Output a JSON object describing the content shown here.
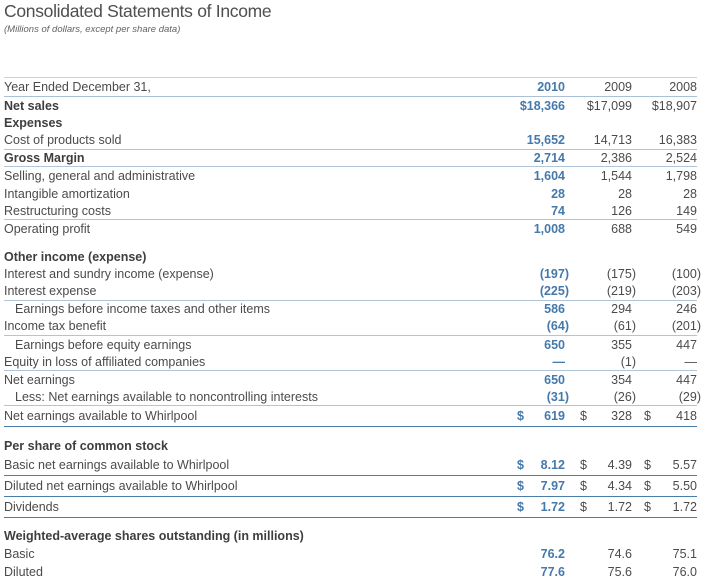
{
  "title": "Consolidated Statements of Income",
  "subtitle": "(Millions of dollars, except per share data)",
  "colors": {
    "accent_blue": "#4579ab",
    "rule_light": "#b0c5d8",
    "rule_dark": "#4b7dab",
    "text": "#4b4b4b"
  },
  "table": {
    "header": {
      "label": "Year Ended December 31,",
      "columns": [
        "2010",
        "2009",
        "2008"
      ]
    },
    "rows": [
      {
        "label": "Net sales",
        "bold": true,
        "values": [
          "$18,366",
          "$17,099",
          "$18,907"
        ]
      },
      {
        "label": "Expenses",
        "bold": true
      },
      {
        "label": "Cost of products sold",
        "values": [
          "15,652",
          "14,713",
          "16,383"
        ],
        "rule": "light"
      },
      {
        "label": "Gross Margin",
        "bold": true,
        "values": [
          "2,714",
          "2,386",
          "2,524"
        ],
        "rule": "light"
      },
      {
        "label": "Selling, general and administrative",
        "values": [
          "1,604",
          "1,544",
          "1,798"
        ]
      },
      {
        "label": "Intangible amortization",
        "values": [
          "28",
          "28",
          "28"
        ]
      },
      {
        "label": "Restructuring costs",
        "values": [
          "74",
          "126",
          "149"
        ],
        "rule": "light"
      },
      {
        "label": "Operating profit",
        "values": [
          "1,008",
          "688",
          "549"
        ]
      },
      {
        "label": "Other income (expense)",
        "bold": true,
        "gap": true
      },
      {
        "label": "Interest and sundry income (expense)",
        "values": [
          "(197)",
          "(175)",
          "(100)"
        ]
      },
      {
        "label": "Interest expense",
        "values": [
          "(225)",
          "(219)",
          "(203)"
        ],
        "rule": "light"
      },
      {
        "label": "Earnings before income taxes and other items",
        "indent": true,
        "values": [
          "586",
          "294",
          "246"
        ]
      },
      {
        "label": "Income tax benefit",
        "values": [
          "(64)",
          "(61)",
          "(201)"
        ],
        "rule": "light"
      },
      {
        "label": "Earnings before equity earnings",
        "indent": true,
        "values": [
          "650",
          "355",
          "447"
        ]
      },
      {
        "label": "Equity in loss of affiliated companies",
        "values": [
          "—",
          "(1)",
          "—"
        ],
        "rule": "light"
      },
      {
        "label": "Net earnings",
        "values": [
          "650",
          "354",
          "447"
        ]
      },
      {
        "label": "Less: Net earnings available to noncontrolling interests",
        "indent": true,
        "values": [
          "(31)",
          "(26)",
          "(29)"
        ],
        "rule": "light"
      },
      {
        "label": "Net earnings available to Whirlpool",
        "dollar": true,
        "values": [
          "619",
          "328",
          "418"
        ],
        "rule": "dark"
      },
      {
        "label": "Per share of common stock",
        "bold": true,
        "gap": true
      },
      {
        "label": "Basic net earnings available to Whirlpool",
        "dollar": true,
        "values": [
          "8.12",
          "4.39",
          "5.57"
        ],
        "rule": "dark"
      },
      {
        "label": "Diluted net earnings available to Whirlpool",
        "dollar": true,
        "values": [
          "7.97",
          "4.34",
          "5.50"
        ],
        "rule": "dark"
      },
      {
        "label": "Dividends",
        "dollar": true,
        "values": [
          "1.72",
          "1.72",
          "1.72"
        ],
        "rule": "dark"
      },
      {
        "label": "Weighted-average shares outstanding (in millions)",
        "bold": true,
        "gap": true
      },
      {
        "label": "Basic",
        "values": [
          "76.2",
          "74.6",
          "75.1"
        ]
      },
      {
        "label": "Diluted",
        "values": [
          "77.6",
          "75.6",
          "76.0"
        ]
      }
    ]
  }
}
